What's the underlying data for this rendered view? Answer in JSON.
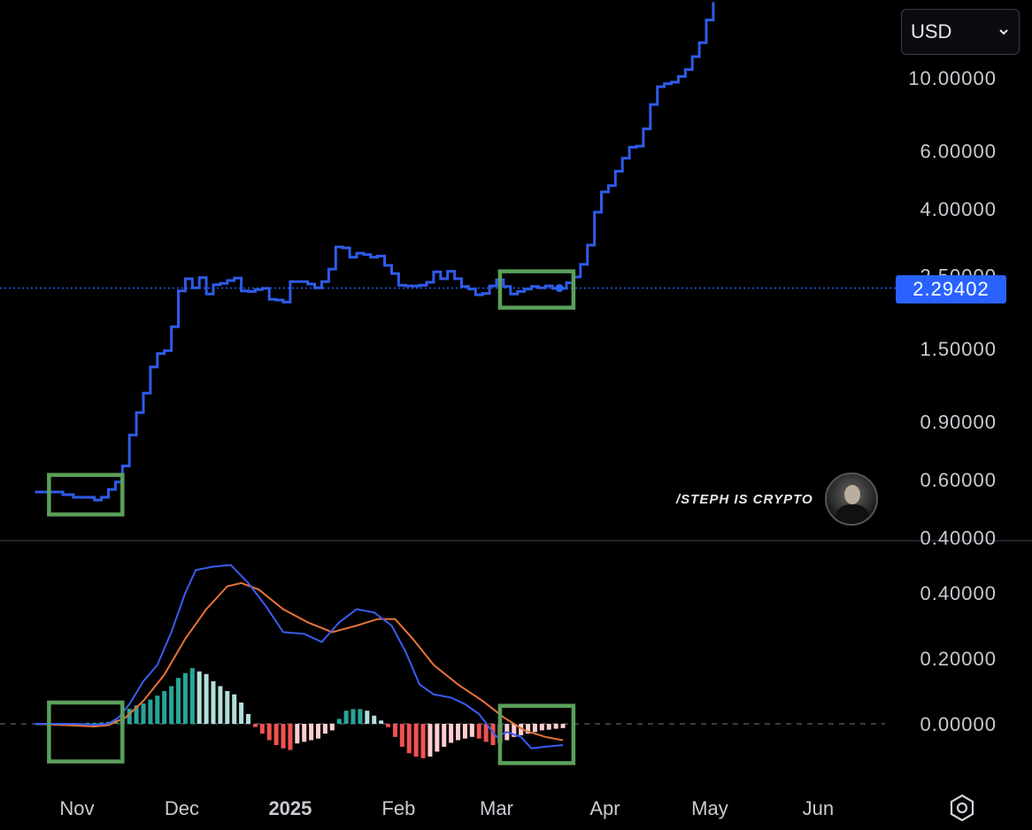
{
  "currency_selector": {
    "value": "USD",
    "icon": "chevron-down-icon"
  },
  "current_price_label": "2.29402",
  "watermark": "/STEPH IS CRYPTO",
  "settings_icon": "settings-icon",
  "colors": {
    "price_line": "#2f5be8",
    "macd_line": "#3a5cf0",
    "signal_line": "#e8733a",
    "hist_pos_strong": "#26a69a",
    "hist_pos_weak": "#b2dfdb",
    "hist_neg_strong": "#ef5350",
    "hist_neg_weak": "#ffcdd2",
    "highlight_box": "#5aa05a",
    "price_tag": "#2962ff"
  },
  "chart_data": [
    {
      "type": "line",
      "yscale": "log",
      "y_tick_labels": [
        "10.00000",
        "6.00000",
        "4.00000",
        "2.50000",
        "1.50000",
        "0.90000",
        "0.60000",
        "0.40000"
      ],
      "y_ticks": [
        10,
        6,
        4,
        2.5,
        1.5,
        0.9,
        0.6,
        0.4
      ],
      "current_price": 2.29402,
      "x_tick_labels": [
        "Nov",
        "Dec",
        "2025",
        "Feb",
        "Mar",
        "Apr",
        "May",
        "Jun"
      ],
      "x_tick_dates": [
        "2024-11-01",
        "2024-12-01",
        "2025-01-01",
        "2025-02-01",
        "2025-03-01",
        "2025-04-01",
        "2025-05-01",
        "2025-06-01"
      ],
      "series": [
        {
          "points": [
            [
              "2024-10-20",
              0.55
            ],
            [
              "2024-10-25",
              0.55
            ],
            [
              "2024-10-28",
              0.54
            ],
            [
              "2024-10-31",
              0.53
            ],
            [
              "2024-11-03",
              0.53
            ],
            [
              "2024-11-06",
              0.52
            ],
            [
              "2024-11-08",
              0.53
            ],
            [
              "2024-11-10",
              0.56
            ],
            [
              "2024-11-12",
              0.59
            ],
            [
              "2024-11-14",
              0.66
            ],
            [
              "2024-11-16",
              0.82
            ],
            [
              "2024-11-18",
              0.96
            ],
            [
              "2024-11-20",
              1.1
            ],
            [
              "2024-11-22",
              1.32
            ],
            [
              "2024-11-24",
              1.45
            ],
            [
              "2024-11-26",
              1.48
            ],
            [
              "2024-11-28",
              1.75
            ],
            [
              "2024-11-30",
              2.25
            ],
            [
              "2024-12-02",
              2.45
            ],
            [
              "2024-12-04",
              2.3
            ],
            [
              "2024-12-06",
              2.47
            ],
            [
              "2024-12-08",
              2.2
            ],
            [
              "2024-12-10",
              2.35
            ],
            [
              "2024-12-12",
              2.37
            ],
            [
              "2024-12-14",
              2.42
            ],
            [
              "2024-12-16",
              2.46
            ],
            [
              "2024-12-18",
              2.25
            ],
            [
              "2024-12-20",
              2.24
            ],
            [
              "2024-12-22",
              2.27
            ],
            [
              "2024-12-24",
              2.29
            ],
            [
              "2024-12-26",
              2.12
            ],
            [
              "2024-12-28",
              2.11
            ],
            [
              "2024-12-30",
              2.08
            ],
            [
              "2025-01-01",
              2.4
            ],
            [
              "2025-01-03",
              2.4
            ],
            [
              "2025-01-06",
              2.36
            ],
            [
              "2025-01-08",
              2.3
            ],
            [
              "2025-01-10",
              2.4
            ],
            [
              "2025-01-12",
              2.62
            ],
            [
              "2025-01-14",
              3.06
            ],
            [
              "2025-01-16",
              3.04
            ],
            [
              "2025-01-18",
              2.85
            ],
            [
              "2025-01-20",
              2.93
            ],
            [
              "2025-01-22",
              2.9
            ],
            [
              "2025-01-24",
              2.85
            ],
            [
              "2025-01-26",
              2.87
            ],
            [
              "2025-01-28",
              2.69
            ],
            [
              "2025-01-30",
              2.54
            ],
            [
              "2025-02-01",
              2.34
            ],
            [
              "2025-02-03",
              2.33
            ],
            [
              "2025-02-05",
              2.33
            ],
            [
              "2025-02-07",
              2.34
            ],
            [
              "2025-02-09",
              2.39
            ],
            [
              "2025-02-11",
              2.57
            ],
            [
              "2025-02-13",
              2.45
            ],
            [
              "2025-02-15",
              2.58
            ],
            [
              "2025-02-17",
              2.45
            ],
            [
              "2025-02-19",
              2.32
            ],
            [
              "2025-02-21",
              2.28
            ],
            [
              "2025-02-23",
              2.19
            ],
            [
              "2025-02-25",
              2.21
            ],
            [
              "2025-02-27",
              2.33
            ],
            [
              "2025-03-01",
              2.43
            ],
            [
              "2025-03-03",
              2.32
            ],
            [
              "2025-03-05",
              2.2
            ],
            [
              "2025-03-07",
              2.24
            ],
            [
              "2025-03-09",
              2.28
            ],
            [
              "2025-03-11",
              2.32
            ],
            [
              "2025-03-13",
              2.3
            ],
            [
              "2025-03-15",
              2.33
            ],
            [
              "2025-03-17",
              2.29
            ],
            [
              "2025-03-19",
              2.29
            ],
            [
              "2025-03-21",
              2.38
            ],
            [
              "2025-03-23",
              2.48
            ],
            [
              "2025-03-25",
              2.71
            ],
            [
              "2025-03-27",
              3.1
            ],
            [
              "2025-03-29",
              3.9
            ],
            [
              "2025-03-31",
              4.5
            ],
            [
              "2025-04-02",
              4.7
            ],
            [
              "2025-04-04",
              5.2
            ],
            [
              "2025-04-06",
              5.7
            ],
            [
              "2025-04-08",
              6.15
            ],
            [
              "2025-04-10",
              6.2
            ],
            [
              "2025-04-12",
              7.0
            ],
            [
              "2025-04-14",
              8.3
            ],
            [
              "2025-04-16",
              9.4
            ],
            [
              "2025-04-18",
              9.6
            ],
            [
              "2025-04-20",
              9.7
            ],
            [
              "2025-04-22",
              10.1
            ],
            [
              "2025-04-24",
              10.6
            ],
            [
              "2025-04-26",
              11.6
            ],
            [
              "2025-04-28",
              12.8
            ],
            [
              "2025-04-30",
              15.0
            ],
            [
              "2025-05-02",
              17.0
            ]
          ]
        }
      ]
    },
    {
      "type": "line",
      "y_tick_labels": [
        "0.40000",
        "0.20000",
        "0.00000"
      ],
      "y_ticks": [
        0.4,
        0.2,
        0.0
      ],
      "series": [
        {
          "points": [
            [
              "2024-10-20",
              0.0
            ],
            [
              "2024-10-31",
              0.0
            ],
            [
              "2024-11-06",
              -0.003
            ],
            [
              "2024-11-10",
              0.0
            ],
            [
              "2024-11-13",
              0.02
            ],
            [
              "2024-11-16",
              0.06
            ],
            [
              "2024-11-20",
              0.13
            ],
            [
              "2024-11-24",
              0.18
            ],
            [
              "2024-11-28",
              0.28
            ],
            [
              "2024-12-02",
              0.4
            ],
            [
              "2024-12-05",
              0.47
            ],
            [
              "2024-12-10",
              0.48
            ],
            [
              "2024-12-15",
              0.485
            ],
            [
              "2024-12-20",
              0.43
            ],
            [
              "2024-12-25",
              0.36
            ],
            [
              "2024-12-30",
              0.28
            ],
            [
              "2025-01-05",
              0.275
            ],
            [
              "2025-01-10",
              0.25
            ],
            [
              "2025-01-15",
              0.31
            ],
            [
              "2025-01-20",
              0.35
            ],
            [
              "2025-01-25",
              0.34
            ],
            [
              "2025-01-30",
              0.3
            ],
            [
              "2025-02-03",
              0.22
            ],
            [
              "2025-02-07",
              0.12
            ],
            [
              "2025-02-11",
              0.09
            ],
            [
              "2025-02-16",
              0.08
            ],
            [
              "2025-02-20",
              0.06
            ],
            [
              "2025-02-24",
              0.03
            ],
            [
              "2025-03-01",
              -0.04
            ],
            [
              "2025-03-04",
              -0.025
            ],
            [
              "2025-03-08",
              -0.04
            ],
            [
              "2025-03-11",
              -0.075
            ],
            [
              "2025-03-15",
              -0.07
            ],
            [
              "2025-03-20",
              -0.065
            ]
          ]
        },
        {
          "points": [
            [
              "2024-10-20",
              0.0
            ],
            [
              "2024-10-31",
              -0.005
            ],
            [
              "2024-11-06",
              -0.008
            ],
            [
              "2024-11-10",
              -0.004
            ],
            [
              "2024-11-15",
              0.02
            ],
            [
              "2024-11-20",
              0.07
            ],
            [
              "2024-11-26",
              0.15
            ],
            [
              "2024-12-02",
              0.26
            ],
            [
              "2024-12-08",
              0.35
            ],
            [
              "2024-12-14",
              0.42
            ],
            [
              "2024-12-18",
              0.43
            ],
            [
              "2024-12-23",
              0.41
            ],
            [
              "2024-12-30",
              0.35
            ],
            [
              "2025-01-06",
              0.31
            ],
            [
              "2025-01-13",
              0.28
            ],
            [
              "2025-01-20",
              0.3
            ],
            [
              "2025-01-26",
              0.32
            ],
            [
              "2025-01-31",
              0.32
            ],
            [
              "2025-02-05",
              0.26
            ],
            [
              "2025-02-11",
              0.18
            ],
            [
              "2025-02-18",
              0.12
            ],
            [
              "2025-02-25",
              0.07
            ],
            [
              "2025-03-03",
              0.02
            ],
            [
              "2025-03-09",
              -0.02
            ],
            [
              "2025-03-15",
              -0.04
            ],
            [
              "2025-03-20",
              -0.05
            ]
          ]
        }
      ],
      "histogram": [
        [
          "2024-10-21",
          0.0
        ],
        [
          "2024-10-23",
          0.0
        ],
        [
          "2024-10-25",
          0.0
        ],
        [
          "2024-10-27",
          0.0
        ],
        [
          "2024-10-29",
          0.0
        ],
        [
          "2024-10-31",
          0.002
        ],
        [
          "2024-11-02",
          0.002
        ],
        [
          "2024-11-04",
          0.003
        ],
        [
          "2024-11-06",
          0.003
        ],
        [
          "2024-11-08",
          0.004
        ],
        [
          "2024-11-10",
          0.006
        ],
        [
          "2024-11-12",
          0.012
        ],
        [
          "2024-11-14",
          0.03
        ],
        [
          "2024-11-16",
          0.046
        ],
        [
          "2024-11-18",
          0.056
        ],
        [
          "2024-11-20",
          0.062
        ],
        [
          "2024-11-22",
          0.074
        ],
        [
          "2024-11-24",
          0.086
        ],
        [
          "2024-11-26",
          0.1
        ],
        [
          "2024-11-28",
          0.115
        ],
        [
          "2024-11-30",
          0.14
        ],
        [
          "2024-12-02",
          0.155
        ],
        [
          "2024-12-04",
          0.17
        ],
        [
          "2024-12-06",
          0.16
        ],
        [
          "2024-12-08",
          0.152
        ],
        [
          "2024-12-10",
          0.13
        ],
        [
          "2024-12-12",
          0.115
        ],
        [
          "2024-12-14",
          0.1
        ],
        [
          "2024-12-16",
          0.09
        ],
        [
          "2024-12-18",
          0.065
        ],
        [
          "2024-12-20",
          0.03
        ],
        [
          "2024-12-22",
          -0.01
        ],
        [
          "2024-12-24",
          -0.03
        ],
        [
          "2024-12-26",
          -0.05
        ],
        [
          "2024-12-28",
          -0.065
        ],
        [
          "2024-12-30",
          -0.075
        ],
        [
          "2025-01-01",
          -0.08
        ],
        [
          "2025-01-03",
          -0.06
        ],
        [
          "2025-01-05",
          -0.055
        ],
        [
          "2025-01-07",
          -0.05
        ],
        [
          "2025-01-09",
          -0.045
        ],
        [
          "2025-01-11",
          -0.03
        ],
        [
          "2025-01-13",
          -0.02
        ],
        [
          "2025-01-15",
          0.015
        ],
        [
          "2025-01-17",
          0.04
        ],
        [
          "2025-01-19",
          0.045
        ],
        [
          "2025-01-21",
          0.045
        ],
        [
          "2025-01-23",
          0.04
        ],
        [
          "2025-01-25",
          0.025
        ],
        [
          "2025-01-27",
          0.01
        ],
        [
          "2025-01-29",
          -0.01
        ],
        [
          "2025-01-31",
          -0.04
        ],
        [
          "2025-02-02",
          -0.07
        ],
        [
          "2025-02-04",
          -0.09
        ],
        [
          "2025-02-06",
          -0.1
        ],
        [
          "2025-02-08",
          -0.105
        ],
        [
          "2025-02-10",
          -0.1
        ],
        [
          "2025-02-12",
          -0.085
        ],
        [
          "2025-02-14",
          -0.07
        ],
        [
          "2025-02-16",
          -0.058
        ],
        [
          "2025-02-18",
          -0.05
        ],
        [
          "2025-02-20",
          -0.045
        ],
        [
          "2025-02-22",
          -0.04
        ],
        [
          "2025-02-24",
          -0.045
        ],
        [
          "2025-02-26",
          -0.055
        ],
        [
          "2025-02-28",
          -0.065
        ],
        [
          "2025-03-02",
          -0.06
        ],
        [
          "2025-03-04",
          -0.05
        ],
        [
          "2025-03-06",
          -0.04
        ],
        [
          "2025-03-08",
          -0.035
        ],
        [
          "2025-03-10",
          -0.03
        ],
        [
          "2025-03-12",
          -0.025
        ],
        [
          "2025-03-14",
          -0.02
        ],
        [
          "2025-03-16",
          -0.018
        ],
        [
          "2025-03-18",
          -0.015
        ],
        [
          "2025-03-20",
          -0.013
        ]
      ]
    }
  ]
}
